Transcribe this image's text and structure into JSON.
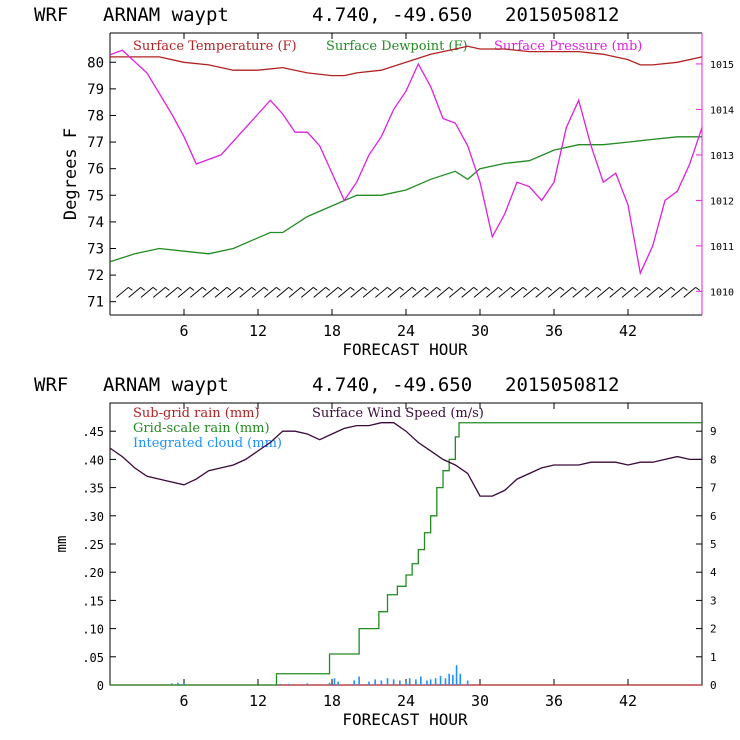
{
  "chart_data": [
    {
      "type": "line",
      "header": {
        "model": "WRF",
        "station": "ARNAM waypt",
        "coords": "4.740, -49.650",
        "date": "2015050812"
      },
      "xlabel": "FORECAST HOUR",
      "ylabel": "Degrees F",
      "xlim": [
        0,
        48
      ],
      "xticks": [
        "6",
        "12",
        "18",
        "24",
        "30",
        "36",
        "42"
      ],
      "xtick_values": [
        6,
        12,
        18,
        24,
        30,
        36,
        42
      ],
      "ylim": [
        70.5,
        81.1
      ],
      "yticks": [
        "71",
        "72",
        "73",
        "74",
        "75",
        "76",
        "77",
        "78",
        "79",
        "80"
      ],
      "y2lim": [
        1009.48,
        1015.68
      ],
      "y2ticks": [
        "1010",
        "1011",
        "1012",
        "1013",
        "1014",
        "1015"
      ],
      "legend": [
        "Surface Temperature (F)",
        "Surface Dewpoint (F)",
        "Surface Pressure (mb)"
      ],
      "colors": {
        "temperature": "#b22222",
        "dewpoint": "#228b22",
        "pressure": "#e020e0",
        "axis2": "#e020e0"
      },
      "series": [
        {
          "name": "Surface Temperature (F)",
          "axis": "left",
          "x": [
            0,
            2,
            4,
            6,
            8,
            10,
            12,
            14,
            16,
            18,
            19,
            20,
            22,
            24,
            26,
            28,
            29,
            30,
            32,
            34,
            36,
            38,
            40,
            42,
            43,
            44,
            46,
            48
          ],
          "y": [
            80.2,
            80.2,
            80.2,
            80.0,
            79.9,
            79.7,
            79.7,
            79.8,
            79.6,
            79.5,
            79.5,
            79.6,
            79.7,
            80.0,
            80.3,
            80.5,
            80.6,
            80.5,
            80.5,
            80.4,
            80.4,
            80.4,
            80.3,
            80.1,
            79.9,
            79.9,
            80.0,
            80.2
          ]
        },
        {
          "name": "Surface Dewpoint (F)",
          "axis": "left",
          "x": [
            0,
            2,
            4,
            6,
            8,
            10,
            12,
            13,
            14,
            16,
            18,
            20,
            22,
            24,
            26,
            28,
            29,
            30,
            32,
            34,
            36,
            38,
            40,
            42,
            44,
            46,
            48
          ],
          "y": [
            72.5,
            72.8,
            73.0,
            72.9,
            72.8,
            73.0,
            73.4,
            73.6,
            73.6,
            74.2,
            74.6,
            75.0,
            75.0,
            75.2,
            75.6,
            75.9,
            75.6,
            76.0,
            76.2,
            76.3,
            76.7,
            76.9,
            76.9,
            77.0,
            77.1,
            77.2,
            77.2
          ]
        },
        {
          "name": "Surface Pressure (mb)",
          "axis": "right",
          "x": [
            0,
            1,
            3,
            5,
            6,
            7,
            8,
            9,
            10,
            12,
            13,
            14,
            15,
            16,
            17,
            18,
            19,
            20,
            21,
            22,
            23,
            24,
            25,
            26,
            27,
            28,
            29,
            30,
            31,
            32,
            33,
            34,
            35,
            36,
            37,
            38,
            39,
            40,
            41,
            42,
            43,
            44,
            45,
            46,
            47,
            48
          ],
          "y": [
            1015.2,
            1015.3,
            1014.8,
            1013.9,
            1013.4,
            1012.8,
            1012.9,
            1013.0,
            1013.3,
            1013.9,
            1014.2,
            1013.9,
            1013.5,
            1013.5,
            1013.2,
            1012.6,
            1012.0,
            1012.4,
            1013.0,
            1013.4,
            1014.0,
            1014.4,
            1015.0,
            1014.5,
            1013.8,
            1013.7,
            1013.2,
            1012.4,
            1011.2,
            1011.7,
            1012.4,
            1012.3,
            1012.0,
            1012.4,
            1013.6,
            1014.2,
            1013.2,
            1012.4,
            1012.6,
            1011.9,
            1010.4,
            1011.0,
            1012.0,
            1012.2,
            1012.8,
            1013.6
          ]
        }
      ],
      "wind_barbs": {
        "y_level": 71.35,
        "hours_start": 1,
        "hours_end": 47,
        "step": 1
      }
    },
    {
      "type": "line",
      "header": {
        "model": "WRF",
        "station": "ARNAM waypt",
        "coords": "4.740, -49.650",
        "date": "2015050812"
      },
      "xlabel": "FORECAST HOUR",
      "ylabel": "mm",
      "xlim": [
        0,
        48
      ],
      "xticks": [
        "6",
        "12",
        "18",
        "24",
        "30",
        "36",
        "42"
      ],
      "xtick_values": [
        6,
        12,
        18,
        24,
        30,
        36,
        42
      ],
      "ylim": [
        0,
        0.5
      ],
      "yticks": [
        "0",
        ".05",
        ".10",
        ".15",
        ".20",
        ".25",
        ".30",
        ".35",
        ".40",
        ".45"
      ],
      "y2lim": [
        0,
        10
      ],
      "y2ticks": [
        "0",
        "1",
        "2",
        "3",
        "4",
        "5",
        "6",
        "7",
        "8",
        "9"
      ],
      "legend": [
        "Sub-grid rain (mm)",
        "Surface Wind Speed (m/s)",
        "Grid-scale rain (mm)",
        "Integrated cloud (mm)"
      ],
      "colors": {
        "subgrid": "#b22222",
        "wind": "#3a0a3a",
        "gridscale": "#228b22",
        "cloud": "#1e90ff"
      },
      "series": [
        {
          "name": "Sub-grid rain (mm)",
          "axis": "left",
          "x": [
            0,
            48
          ],
          "y": [
            0,
            0
          ]
        },
        {
          "name": "Grid-scale rain (mm)",
          "axis": "left",
          "step": true,
          "x": [
            0,
            13.5,
            17.8,
            20.2,
            21.8,
            22.5,
            23.3,
            24.0,
            24.5,
            25.0,
            25.5,
            26.0,
            26.5,
            27.0,
            27.5,
            28.0,
            28.3,
            48
          ],
          "y": [
            0,
            0.02,
            0.055,
            0.1,
            0.13,
            0.16,
            0.175,
            0.195,
            0.215,
            0.24,
            0.27,
            0.3,
            0.35,
            0.38,
            0.4,
            0.44,
            0.465,
            0.465
          ]
        },
        {
          "name": "Integrated cloud (mm)",
          "axis": "left",
          "type": "bar",
          "x": [
            5,
            5.5,
            6,
            13.8,
            14.5,
            16,
            17.8,
            18.2,
            18.5,
            19.8,
            20.2,
            21,
            21.5,
            22,
            22.5,
            23,
            23.5,
            24,
            24.3,
            24.8,
            25.2,
            25.7,
            26,
            26.4,
            26.8,
            27.2,
            27.5,
            27.8,
            28.1,
            28.4,
            29
          ],
          "y": [
            0.003,
            0.004,
            0.003,
            0.002,
            0.002,
            0.003,
            0.004,
            0.012,
            0.006,
            0.008,
            0.015,
            0.006,
            0.01,
            0.008,
            0.012,
            0.01,
            0.008,
            0.006,
            0.012,
            0.01,
            0.015,
            0.008,
            0.01,
            0.012,
            0.016,
            0.012,
            0.02,
            0.018,
            0.035,
            0.02,
            0.008
          ]
        },
        {
          "name": "Surface Wind Speed (m/s)",
          "axis": "right",
          "x": [
            0,
            1,
            2,
            3,
            4,
            5,
            6,
            7,
            8,
            9,
            10,
            11,
            12,
            13,
            14,
            15,
            16,
            17,
            18,
            19,
            20,
            21,
            22,
            23,
            24,
            25,
            26,
            27,
            28,
            29,
            30,
            31,
            32,
            33,
            34,
            35,
            36,
            37,
            38,
            39,
            40,
            41,
            42,
            43,
            44,
            45,
            46,
            47,
            48
          ],
          "y": [
            8.4,
            8.1,
            7.7,
            7.4,
            7.3,
            7.2,
            7.1,
            7.3,
            7.6,
            7.7,
            7.8,
            8.0,
            8.3,
            8.6,
            9.0,
            9.0,
            8.9,
            8.7,
            8.9,
            9.1,
            9.2,
            9.2,
            9.3,
            9.3,
            9.0,
            8.6,
            8.3,
            8.0,
            7.8,
            7.5,
            6.7,
            6.7,
            6.9,
            7.3,
            7.5,
            7.7,
            7.8,
            7.8,
            7.8,
            7.9,
            7.9,
            7.9,
            7.8,
            7.9,
            7.9,
            8.0,
            8.1,
            8.0,
            8.0
          ]
        }
      ]
    }
  ]
}
